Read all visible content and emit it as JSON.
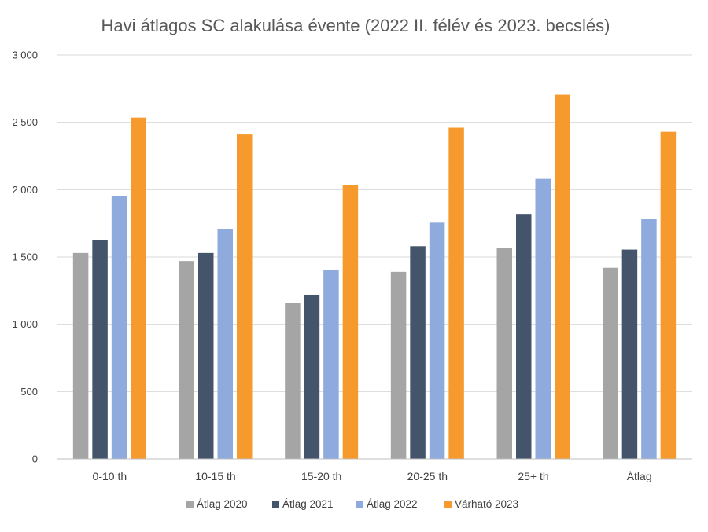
{
  "chart_data": {
    "type": "bar",
    "title": "Havi átlagos SC alakulása évente (2022 II. félév és 2023. becslés)",
    "xlabel": "",
    "ylabel": "",
    "categories": [
      "0-10 th",
      "10-15 th",
      "15-20 th",
      "20-25 th",
      "25+ th",
      "Átlag"
    ],
    "series": [
      {
        "name": "Átlag 2020",
        "color": "#a5a5a5",
        "values": [
          1530,
          1470,
          1160,
          1390,
          1565,
          1420
        ]
      },
      {
        "name": "Átlag 2021",
        "color": "#44546a",
        "values": [
          1625,
          1530,
          1220,
          1580,
          1820,
          1555
        ]
      },
      {
        "name": "Átlag 2022",
        "color": "#8faadc",
        "values": [
          1950,
          1710,
          1405,
          1755,
          2080,
          1780
        ]
      },
      {
        "name": "Várható 2023",
        "color": "#f79a2e",
        "values": [
          2535,
          2410,
          2035,
          2460,
          2705,
          2430
        ]
      }
    ],
    "ylim": [
      0,
      3000
    ],
    "yticks": [
      0,
      500,
      1000,
      1500,
      2000,
      2500,
      3000
    ],
    "ytick_labels": [
      "0",
      "500",
      "1 000",
      "1 500",
      "2 000",
      "2 500",
      "3 000"
    ],
    "grid": true,
    "legend_position": "bottom"
  }
}
